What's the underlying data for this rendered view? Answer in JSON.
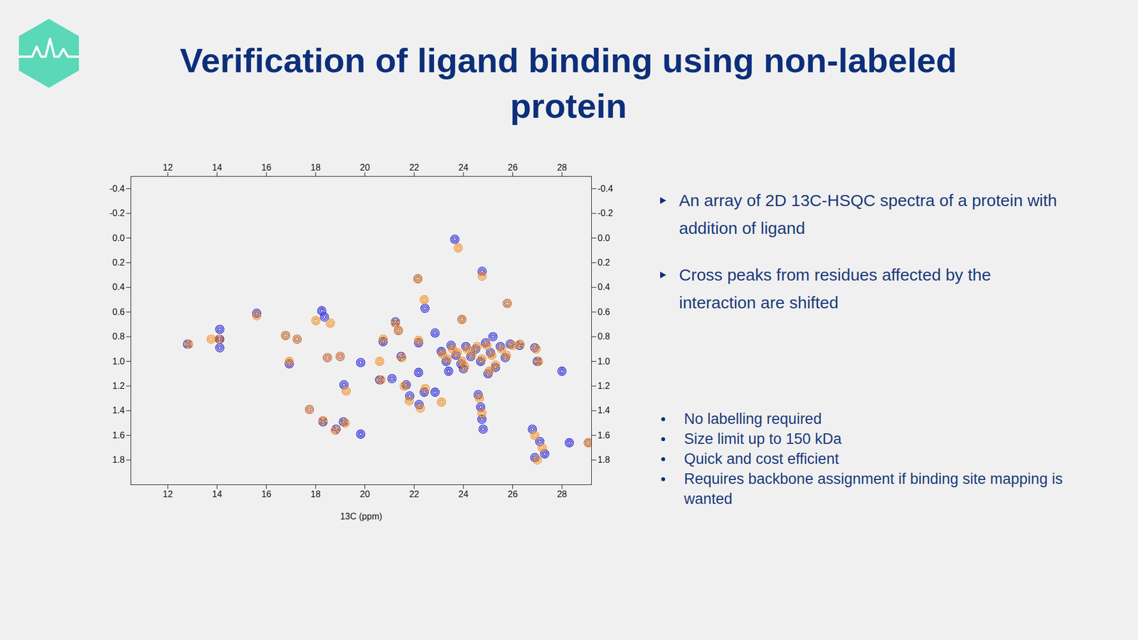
{
  "slide": {
    "title": "Verification of ligand binding using non-labeled protein",
    "bullets": [
      "An array of 2D 13C-HSQC spectra of a protein with addition of ligand",
      "Cross peaks from residues affected by the interaction are shifted"
    ],
    "list": [
      "No labelling required",
      "Size limit up to 150 kDa",
      "Quick and cost efficient",
      "Requires backbone assignment if binding site mapping is wanted"
    ]
  },
  "chart_data": {
    "type": "scatter",
    "xlabel": "13C (ppm)",
    "xlim": [
      10.5,
      29.2
    ],
    "ylim": [
      -0.5,
      2.0
    ],
    "xticks": [
      12,
      14,
      16,
      18,
      20,
      22,
      24,
      26,
      28
    ],
    "yticks": [
      -0.4,
      -0.2,
      {
        "value": 0,
        "label": "0.0"
      },
      0.2,
      0.4,
      0.6,
      0.8,
      {
        "value": 1,
        "label": "1.0"
      },
      1.2,
      1.4,
      1.6,
      1.8
    ],
    "series": [
      {
        "color": "#1a1ad4",
        "marker": "circle",
        "x": [
          23.65,
          24.76,
          22.15,
          22.44,
          25.78,
          23.94,
          15.61,
          18.25,
          18.36,
          14.11,
          14.11,
          14.11,
          12.8,
          16.78,
          17.25,
          16.93,
          18.48,
          19.0,
          19.83,
          19.15,
          17.75,
          18.3,
          18.83,
          19.13,
          19.83,
          21.24,
          21.36,
          20.74,
          22.18,
          22.85,
          21.47,
          22.18,
          20.6,
          21.1,
          21.68,
          21.82,
          22.2,
          22.85,
          22.41,
          23.1,
          23.3,
          23.5,
          23.7,
          23.9,
          24.1,
          24.3,
          24.5,
          24.7,
          24.9,
          25.1,
          25.2,
          25.3,
          25.5,
          25.7,
          25.9,
          24.0,
          23.4,
          25.0,
          24.6,
          24.7,
          24.75,
          24.8,
          26.28,
          26.9,
          27.0,
          28.0,
          26.8,
          27.1,
          27.3,
          26.9,
          28.3,
          29.07
        ],
        "values": [
          0.01,
          0.27,
          0.33,
          0.57,
          0.53,
          0.66,
          0.61,
          0.59,
          0.64,
          0.74,
          0.82,
          0.89,
          0.86,
          0.79,
          0.82,
          1.02,
          0.97,
          0.96,
          1.01,
          1.19,
          1.39,
          1.49,
          1.55,
          1.49,
          1.59,
          0.68,
          0.75,
          0.84,
          0.85,
          0.77,
          0.96,
          1.09,
          1.15,
          1.14,
          1.19,
          1.28,
          1.35,
          1.25,
          1.25,
          0.92,
          1.0,
          0.87,
          0.95,
          1.02,
          0.88,
          0.96,
          0.9,
          1.0,
          0.85,
          0.93,
          0.8,
          1.05,
          0.88,
          0.97,
          0.86,
          1.06,
          1.08,
          1.1,
          1.27,
          1.37,
          1.47,
          1.55,
          0.87,
          0.89,
          1.0,
          1.08,
          1.55,
          1.65,
          1.75,
          1.78,
          1.66,
          1.66
        ]
      },
      {
        "color": "#f08c1e",
        "marker": "circle",
        "x": [
          23.79,
          24.76,
          22.15,
          22.41,
          25.78,
          23.94,
          15.61,
          18.01,
          18.6,
          13.76,
          14.08,
          12.85,
          16.78,
          17.25,
          16.93,
          18.48,
          19.0,
          20.6,
          19.24,
          17.75,
          18.3,
          18.8,
          19.2,
          21.24,
          21.36,
          20.74,
          22.18,
          21.5,
          20.65,
          21.6,
          21.8,
          22.25,
          23.11,
          22.45,
          23.15,
          23.35,
          23.55,
          23.75,
          23.95,
          24.15,
          24.35,
          24.55,
          24.75,
          24.95,
          25.15,
          25.3,
          25.55,
          25.75,
          26.0,
          24.05,
          25.05,
          24.65,
          24.75,
          26.3,
          26.95,
          27.05,
          26.9,
          27.2,
          27.0,
          29.07
        ],
        "values": [
          0.08,
          0.31,
          0.33,
          0.5,
          0.53,
          0.66,
          0.63,
          0.67,
          0.69,
          0.82,
          0.82,
          0.86,
          0.79,
          0.82,
          1.0,
          0.97,
          0.96,
          1.0,
          1.24,
          1.39,
          1.48,
          1.56,
          1.5,
          0.69,
          0.75,
          0.82,
          0.83,
          0.97,
          1.15,
          1.2,
          1.32,
          1.38,
          1.33,
          1.22,
          0.94,
          0.98,
          0.9,
          0.93,
          1.0,
          0.9,
          0.94,
          0.88,
          0.98,
          0.87,
          0.95,
          1.03,
          0.9,
          0.95,
          0.87,
          1.04,
          1.08,
          1.3,
          1.42,
          0.86,
          0.9,
          1.0,
          1.6,
          1.7,
          1.8,
          1.66
        ]
      }
    ]
  }
}
